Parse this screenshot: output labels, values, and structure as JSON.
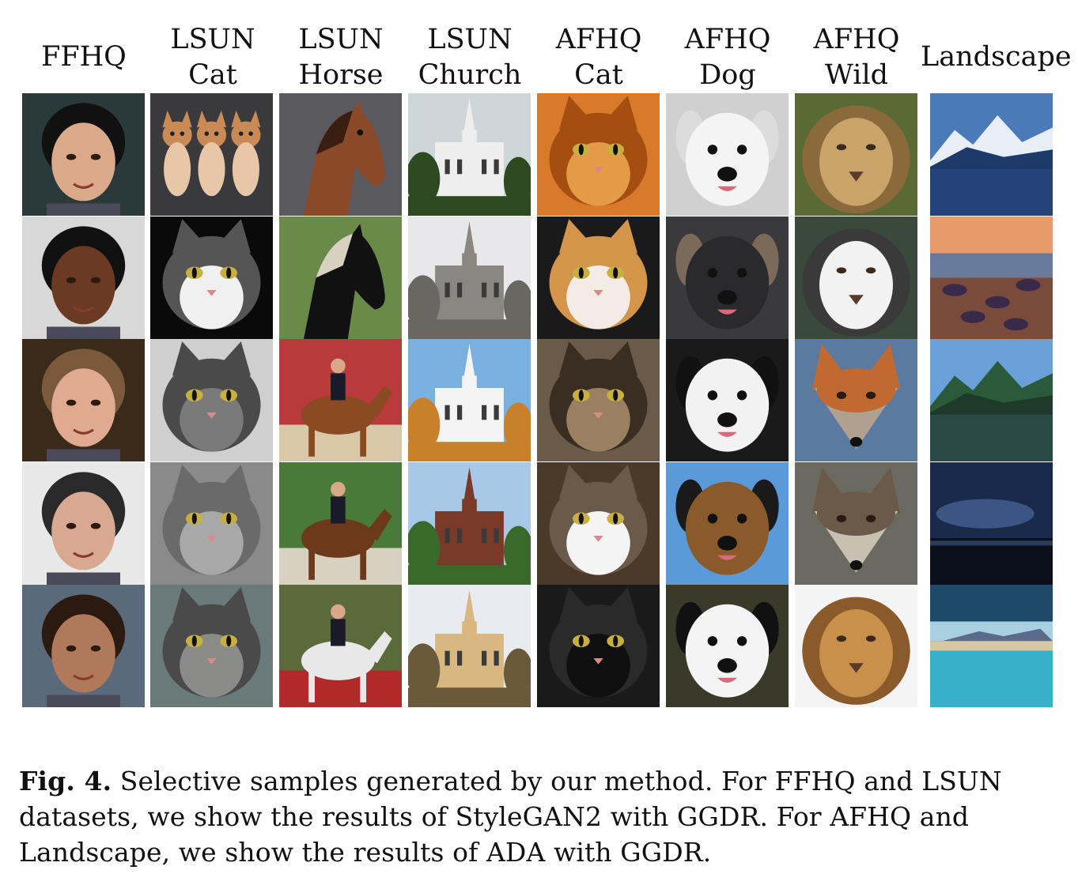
{
  "columns": [
    {
      "line1": "FFHQ",
      "line2": ""
    },
    {
      "line1": "LSUN",
      "line2": "Cat"
    },
    {
      "line1": "LSUN",
      "line2": "Horse"
    },
    {
      "line1": "LSUN",
      "line2": "Church"
    },
    {
      "line1": "AFHQ",
      "line2": "Cat"
    },
    {
      "line1": "AFHQ",
      "line2": "Dog"
    },
    {
      "line1": "AFHQ",
      "line2": "Wild"
    },
    {
      "line1": "Landscape",
      "line2": ""
    }
  ],
  "caption": {
    "label": "Fig. 4.",
    "text": "Selective samples generated by our method. For FFHQ and LSUN datasets, we show the results of StyleGAN2 with GGDR. For AFHQ and Landscape, we show the results of ADA with GGDR."
  },
  "tiles": [
    [
      {
        "name": "child-face",
        "subject": "face",
        "bg": "#2a3a3a",
        "fg": "#d9a98a",
        "hair": "#111111"
      },
      {
        "name": "three-kittens",
        "subject": "kittens",
        "bg": "#3a3a3c",
        "fg": "#e8c7a8",
        "hair": "#c98a55"
      },
      {
        "name": "brown-horse-head",
        "subject": "horse",
        "bg": "#5a5a5e",
        "fg": "#8a4a2a",
        "hair": "#3a1e10"
      },
      {
        "name": "white-church-spires",
        "subject": "church",
        "bg": "#cfd6da",
        "fg": "#eeeeee",
        "hair": "#2e4a22"
      },
      {
        "name": "orange-cat",
        "subject": "cat",
        "bg": "#d97a2a",
        "fg": "#e59a48",
        "hair": "#a54e12"
      },
      {
        "name": "white-dog",
        "subject": "dog",
        "bg": "#d0d0d0",
        "fg": "#f4f4f4",
        "hair": "#dcdcdc"
      },
      {
        "name": "lioness",
        "subject": "bigcat",
        "bg": "#5a6a35",
        "fg": "#c9a36a",
        "hair": "#8a6a3a"
      },
      {
        "name": "mountain-lake",
        "subject": "landscape",
        "bg": "#4a7ab8",
        "fg": "#e8eef4",
        "hair": "#1e3a6a"
      }
    ],
    [
      {
        "name": "woman-face",
        "subject": "face",
        "bg": "#d8d8d8",
        "fg": "#6a3a22",
        "hair": "#111111"
      },
      {
        "name": "tabby-white-cat",
        "subject": "cat",
        "bg": "#0a0a0a",
        "fg": "#f0f0f0",
        "hair": "#555555"
      },
      {
        "name": "black-horse-paddock",
        "subject": "horse",
        "bg": "#6a8a4a",
        "fg": "#111111",
        "hair": "#d8d0c0"
      },
      {
        "name": "gothic-cathedral",
        "subject": "church",
        "bg": "#e8e8ea",
        "fg": "#8a8680",
        "hair": "#6a6660"
      },
      {
        "name": "calico-cat",
        "subject": "cat",
        "bg": "#1a1a1a",
        "fg": "#f2ece4",
        "hair": "#d4954a"
      },
      {
        "name": "black-dog",
        "subject": "dog",
        "bg": "#3a3a3c",
        "fg": "#2a2a2c",
        "hair": "#7a6a5a"
      },
      {
        "name": "white-tiger",
        "subject": "bigcat",
        "bg": "#3a4a3a",
        "fg": "#f2f2f2",
        "hair": "#3a3a3a"
      },
      {
        "name": "sunset-coast",
        "subject": "sunset",
        "bg": "#d47a5a",
        "fg": "#7a4a3a",
        "hair": "#3a2a4a"
      }
    ],
    [
      {
        "name": "man-with-cap",
        "subject": "face",
        "bg": "#3a2a1a",
        "fg": "#e0aa90",
        "hair": "#7a5a3a"
      },
      {
        "name": "grey-tabby-cat",
        "subject": "cat",
        "bg": "#cfcfcf",
        "fg": "#7a7a7a",
        "hair": "#4a4a4a"
      },
      {
        "name": "horse-rider-arena",
        "subject": "rider",
        "bg": "#b83a3a",
        "fg": "#8a4a22",
        "hair": "#d8c8a8"
      },
      {
        "name": "white-church-autumn",
        "subject": "church",
        "bg": "#7ab0e0",
        "fg": "#f4f4f4",
        "hair": "#c8802a"
      },
      {
        "name": "tabby-cat-closeup",
        "subject": "cat",
        "bg": "#6a5a4a",
        "fg": "#9a8060",
        "hair": "#3a2e22"
      },
      {
        "name": "border-collie",
        "subject": "dog",
        "bg": "#1a1a1a",
        "fg": "#f2f2f2",
        "hair": "#111111"
      },
      {
        "name": "fox",
        "subject": "fox",
        "bg": "#5a7aa0",
        "fg": "#b0a090",
        "hair": "#c06a32"
      },
      {
        "name": "green-mountains",
        "subject": "landscape",
        "bg": "#6aa0d8",
        "fg": "#2a5a3a",
        "hair": "#1e3a2a"
      }
    ],
    [
      {
        "name": "man-smiling",
        "subject": "face",
        "bg": "#e8e8e8",
        "fg": "#d8a890",
        "hair": "#2a2a2a"
      },
      {
        "name": "grey-cat-closeup",
        "subject": "catclose",
        "bg": "#8a8a8a",
        "fg": "#a8a8a8",
        "hair": "#6a6a6a"
      },
      {
        "name": "horse-rider-field",
        "subject": "rider",
        "bg": "#4a7a3a",
        "fg": "#6a3a1a",
        "hair": "#d8d0c0"
      },
      {
        "name": "brick-church",
        "subject": "church",
        "bg": "#a8c8e8",
        "fg": "#7a3a2a",
        "hair": "#3a6a2a"
      },
      {
        "name": "kitten",
        "subject": "cat",
        "bg": "#4a3a2a",
        "fg": "#f4f4f4",
        "hair": "#6a5a4a"
      },
      {
        "name": "german-shepherd",
        "subject": "dog",
        "bg": "#5a9ad8",
        "fg": "#8a5a2a",
        "hair": "#1a1a1a"
      },
      {
        "name": "wolf",
        "subject": "fox",
        "bg": "#6a6a60",
        "fg": "#c8c0b0",
        "hair": "#6a5a4a"
      },
      {
        "name": "night-lake",
        "subject": "night",
        "bg": "#1a2a4a",
        "fg": "#4a6a9a",
        "hair": "#0a0f1a"
      }
    ],
    [
      {
        "name": "child-curly-hair",
        "subject": "face",
        "bg": "#5a6a7a",
        "fg": "#b07a5a",
        "hair": "#2a1a10"
      },
      {
        "name": "grey-cat-sitting",
        "subject": "catsit",
        "bg": "#6a7a7a",
        "fg": "#8a8a88",
        "hair": "#4a4a4a"
      },
      {
        "name": "rider-white-horse",
        "subject": "rider",
        "bg": "#5a6a3a",
        "fg": "#e8e8e8",
        "hair": "#b02a2a"
      },
      {
        "name": "yellow-cathedral",
        "subject": "church",
        "bg": "#e8ecf0",
        "fg": "#d8b880",
        "hair": "#6a5a3a"
      },
      {
        "name": "black-cat",
        "subject": "cat",
        "bg": "#1a1a1a",
        "fg": "#0f0f0f",
        "hair": "#2a2a2a"
      },
      {
        "name": "dalmatian-dog",
        "subject": "dog",
        "bg": "#3a3a2a",
        "fg": "#f4f4f4",
        "hair": "#111111"
      },
      {
        "name": "lion",
        "subject": "bigcat",
        "bg": "#f4f4f4",
        "fg": "#c8904a",
        "hair": "#8a5a2a"
      },
      {
        "name": "turquoise-lake",
        "subject": "sea",
        "bg": "#1e4a6a",
        "fg": "#3ab0c8",
        "hair": "#d8c8a0"
      }
    ]
  ]
}
